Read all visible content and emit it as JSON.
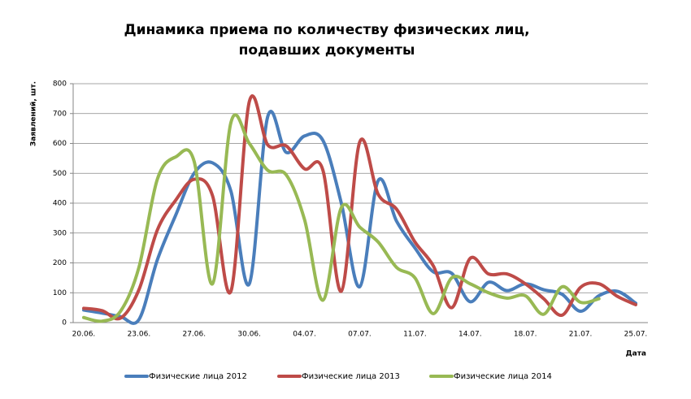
{
  "chart_data": {
    "type": "line",
    "title": [
      "Динамика приема по количеству физических лиц,",
      "подавших документы"
    ],
    "ylabel": "Заявлений, шт.",
    "xlabel": "Дата",
    "categories": [
      "20.06.",
      null,
      null,
      "23.06.",
      null,
      null,
      "27.06.",
      null,
      null,
      "30.06.",
      null,
      null,
      "04.07.",
      null,
      null,
      "07.07.",
      null,
      null,
      "11.07.",
      null,
      null,
      "14.07.",
      null,
      null,
      "18.07.",
      null,
      null,
      "21.07.",
      null,
      null,
      "25.07."
    ],
    "ylim": [
      0,
      800
    ],
    "yticks": [
      0,
      100,
      200,
      300,
      400,
      500,
      600,
      700,
      800
    ],
    "grid": true,
    "smooth": true,
    "legend": "bottom",
    "series": [
      {
        "name": "Физические лица 2012",
        "color": "#4a7ebb",
        "values": [
          42,
          32,
          20,
          10,
          210,
          360,
          500,
          535,
          440,
          130,
          690,
          570,
          625,
          610,
          400,
          120,
          475,
          340,
          250,
          170,
          165,
          70,
          135,
          107,
          130,
          110,
          95,
          38,
          90,
          105,
          65
        ]
      },
      {
        "name": "Физические лица 2013",
        "color": "#be4b48",
        "values": [
          48,
          40,
          15,
          110,
          310,
          410,
          480,
          425,
          105,
          740,
          595,
          592,
          515,
          510,
          105,
          605,
          430,
          380,
          270,
          190,
          50,
          215,
          163,
          163,
          130,
          80,
          25,
          118,
          130,
          88,
          60
        ]
      },
      {
        "name": "Физические лица 2014",
        "color": "#98b954",
        "values": [
          17,
          5,
          38,
          185,
          480,
          555,
          540,
          130,
          670,
          600,
          510,
          495,
          345,
          75,
          385,
          320,
          270,
          185,
          150,
          30,
          150,
          130,
          100,
          82,
          90,
          28,
          120,
          68,
          80,
          null,
          null
        ]
      }
    ]
  }
}
